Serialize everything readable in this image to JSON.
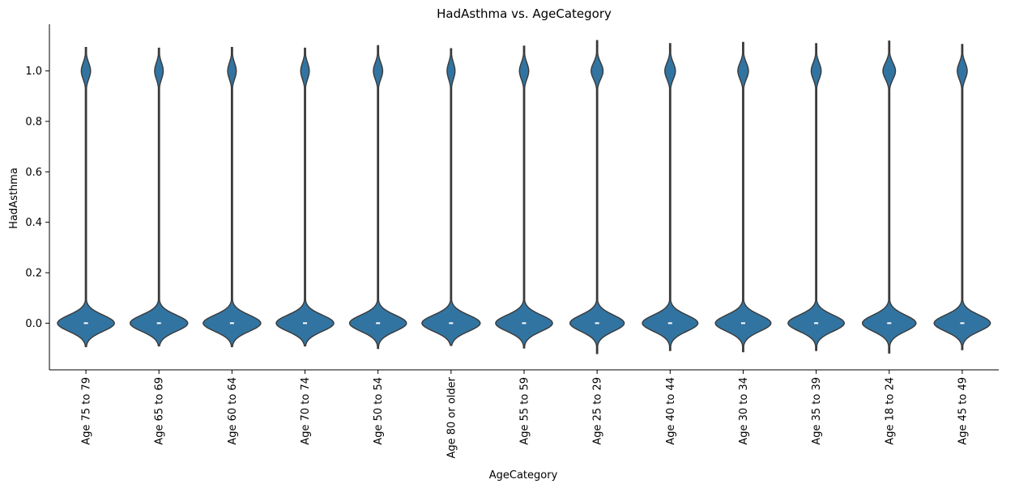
{
  "chart_data": {
    "type": "violin",
    "title": "HadAsthma vs. AgeCategory",
    "xlabel": "AgeCategory",
    "ylabel": "HadAsthma",
    "ylim": [
      -0.185,
      1.185
    ],
    "yticks": [
      0.0,
      0.2,
      0.4,
      0.6,
      0.8,
      1.0
    ],
    "ytick_labels": [
      "0.0",
      "0.2",
      "0.4",
      "0.6",
      "0.8",
      "1.0"
    ],
    "categories": [
      "Age 75 to 79",
      "Age 65 to 69",
      "Age 60 to 64",
      "Age 70 to 74",
      "Age 50 to 54",
      "Age 80 or older",
      "Age 55 to 59",
      "Age 25 to 29",
      "Age 40 to 44",
      "Age 30 to 34",
      "Age 35 to 39",
      "Age 18 to 24",
      "Age 45 to 49"
    ],
    "median": [
      0,
      0,
      0,
      0,
      0,
      0,
      0,
      0,
      0,
      0,
      0,
      0,
      0
    ],
    "y_min_extent": [
      -0.093,
      -0.09,
      -0.093,
      -0.09,
      -0.1,
      -0.088,
      -0.098,
      -0.12,
      -0.108,
      -0.113,
      -0.108,
      -0.118,
      -0.105
    ],
    "y_max_extent": [
      1.093,
      1.09,
      1.093,
      1.09,
      1.1,
      1.088,
      1.098,
      1.12,
      1.108,
      1.113,
      1.108,
      1.118,
      1.105
    ],
    "asthma_share": [
      0.14,
      0.13,
      0.13,
      0.13,
      0.14,
      0.12,
      0.14,
      0.18,
      0.16,
      0.16,
      0.15,
      0.19,
      0.15
    ],
    "grid": false,
    "color": "#3274a1",
    "edge_color": "#3a3a3a"
  }
}
